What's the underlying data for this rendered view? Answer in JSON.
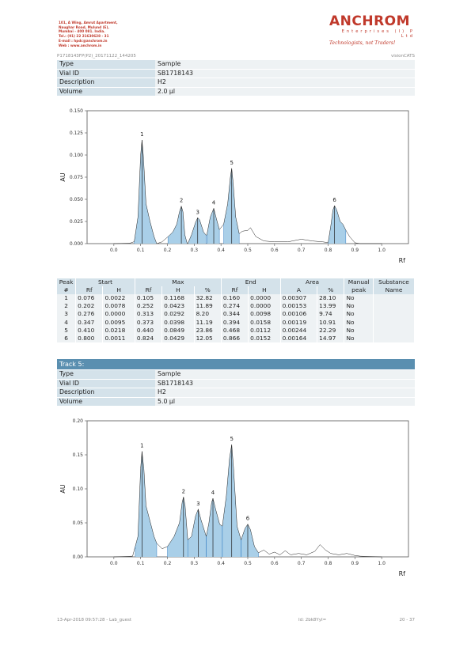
{
  "company": {
    "address_lines": [
      "101, A Wing, Amrut Apartment,",
      "Naughar Road, Mulund (E),",
      "Mumbai - 400 081. India.",
      "Tel.: (91) 22 21630628 - 31",
      "E-mail : hpdc@anchrom.in",
      "Web : www.anchrom.in"
    ],
    "logo_word": "ANCHROM",
    "logo_sub": "Enterprises (I) P Ltd",
    "tagline": "Technologists, not Traders!"
  },
  "header": {
    "file_id": "P1718143FP(P2)_20171122_144205",
    "software": "visionCATS"
  },
  "track4_info": [
    {
      "k": "Type",
      "v": "Sample"
    },
    {
      "k": "Vial ID",
      "v": "SB1718143"
    },
    {
      "k": "Description",
      "v": "H2"
    },
    {
      "k": "Volume",
      "v": "2.0 µl"
    }
  ],
  "track5": {
    "title": "Track 5:",
    "info": [
      {
        "k": "Type",
        "v": "Sample"
      },
      {
        "k": "Vial ID",
        "v": "SB1718143"
      },
      {
        "k": "Description",
        "v": "H2"
      },
      {
        "k": "Volume",
        "v": "5.0 µl"
      }
    ]
  },
  "peak_table": {
    "group_headers": [
      "Peak",
      "Start",
      "Max",
      "End",
      "Area",
      "Manual",
      "Substance"
    ],
    "sub_headers": [
      "#",
      "Rf",
      "H",
      "Rf",
      "H",
      "%",
      "Rf",
      "H",
      "A",
      "%",
      "peak",
      "Name"
    ],
    "rows": [
      [
        "1",
        "0.076",
        "0.0022",
        "0.105",
        "0.1168",
        "32.82",
        "0.160",
        "0.0000",
        "0.00307",
        "28.10",
        "No",
        ""
      ],
      [
        "2",
        "0.202",
        "0.0078",
        "0.252",
        "0.0423",
        "11.89",
        "0.274",
        "0.0000",
        "0.00153",
        "13.99",
        "No",
        ""
      ],
      [
        "3",
        "0.276",
        "0.0000",
        "0.313",
        "0.0292",
        "8.20",
        "0.344",
        "0.0098",
        "0.00106",
        "9.74",
        "No",
        ""
      ],
      [
        "4",
        "0.347",
        "0.0095",
        "0.373",
        "0.0398",
        "11.19",
        "0.394",
        "0.0158",
        "0.00119",
        "10.91",
        "No",
        ""
      ],
      [
        "5",
        "0.410",
        "0.0218",
        "0.440",
        "0.0849",
        "23.86",
        "0.468",
        "0.0112",
        "0.00244",
        "22.29",
        "No",
        ""
      ],
      [
        "6",
        "0.800",
        "0.0011",
        "0.824",
        "0.0429",
        "12.05",
        "0.866",
        "0.0152",
        "0.00164",
        "14.97",
        "No",
        ""
      ]
    ]
  },
  "chart_data": [
    {
      "type": "area",
      "xlabel": "Rf",
      "ylabel": "AU",
      "xlim": [
        -0.1,
        1.1
      ],
      "ylim": [
        0,
        0.15
      ],
      "xticks": [
        "0.0",
        "0.1",
        "0.2",
        "0.3",
        "0.4",
        "0.5",
        "0.6",
        "0.7",
        "0.8",
        "0.9",
        "1.0"
      ],
      "yticks": [
        "0.000",
        "0.025",
        "0.050",
        "0.075",
        "0.100",
        "0.125",
        "0.150"
      ],
      "peaks": [
        {
          "label": "1",
          "rf": 0.105,
          "h": 0.1168,
          "start": 0.076,
          "end": 0.16
        },
        {
          "label": "2",
          "rf": 0.252,
          "h": 0.0423,
          "start": 0.202,
          "end": 0.274
        },
        {
          "label": "3",
          "rf": 0.313,
          "h": 0.0292,
          "start": 0.276,
          "end": 0.344
        },
        {
          "label": "4",
          "rf": 0.373,
          "h": 0.0398,
          "start": 0.347,
          "end": 0.394
        },
        {
          "label": "5",
          "rf": 0.44,
          "h": 0.0849,
          "start": 0.41,
          "end": 0.468
        },
        {
          "label": "6",
          "rf": 0.824,
          "h": 0.0429,
          "start": 0.8,
          "end": 0.866
        }
      ],
      "trace": [
        [
          0.0,
          0.0
        ],
        [
          0.06,
          0.0005
        ],
        [
          0.076,
          0.0022
        ],
        [
          0.09,
          0.03
        ],
        [
          0.1,
          0.1
        ],
        [
          0.105,
          0.1168
        ],
        [
          0.11,
          0.1
        ],
        [
          0.12,
          0.045
        ],
        [
          0.135,
          0.025
        ],
        [
          0.15,
          0.008
        ],
        [
          0.16,
          0.0
        ],
        [
          0.18,
          0.002
        ],
        [
          0.202,
          0.0078
        ],
        [
          0.22,
          0.013
        ],
        [
          0.235,
          0.022
        ],
        [
          0.245,
          0.036
        ],
        [
          0.252,
          0.0423
        ],
        [
          0.258,
          0.036
        ],
        [
          0.265,
          0.01
        ],
        [
          0.274,
          0.0
        ],
        [
          0.276,
          0.0
        ],
        [
          0.29,
          0.01
        ],
        [
          0.305,
          0.024
        ],
        [
          0.313,
          0.0292
        ],
        [
          0.32,
          0.027
        ],
        [
          0.335,
          0.013
        ],
        [
          0.344,
          0.0098
        ],
        [
          0.347,
          0.0095
        ],
        [
          0.36,
          0.03
        ],
        [
          0.373,
          0.0398
        ],
        [
          0.383,
          0.028
        ],
        [
          0.394,
          0.0158
        ],
        [
          0.41,
          0.0218
        ],
        [
          0.425,
          0.045
        ],
        [
          0.435,
          0.075
        ],
        [
          0.44,
          0.0849
        ],
        [
          0.445,
          0.07
        ],
        [
          0.455,
          0.03
        ],
        [
          0.468,
          0.0112
        ],
        [
          0.48,
          0.014
        ],
        [
          0.5,
          0.015
        ],
        [
          0.51,
          0.018
        ],
        [
          0.53,
          0.008
        ],
        [
          0.56,
          0.003
        ],
        [
          0.6,
          0.002
        ],
        [
          0.65,
          0.002
        ],
        [
          0.7,
          0.005
        ],
        [
          0.74,
          0.003
        ],
        [
          0.78,
          0.002
        ],
        [
          0.8,
          0.0011
        ],
        [
          0.81,
          0.02
        ],
        [
          0.818,
          0.038
        ],
        [
          0.824,
          0.0429
        ],
        [
          0.832,
          0.038
        ],
        [
          0.845,
          0.025
        ],
        [
          0.855,
          0.022
        ],
        [
          0.866,
          0.0152
        ],
        [
          0.88,
          0.008
        ],
        [
          0.9,
          0.001
        ],
        [
          0.92,
          0.0
        ],
        [
          1.0,
          0.0
        ]
      ]
    },
    {
      "type": "area",
      "xlabel": "Rf",
      "ylabel": "AU",
      "xlim": [
        -0.1,
        1.1
      ],
      "ylim": [
        0,
        0.2
      ],
      "xticks": [
        "0.0",
        "0.1",
        "0.2",
        "0.3",
        "0.4",
        "0.5",
        "0.6",
        "0.7",
        "0.8",
        "0.9",
        "1.0"
      ],
      "yticks": [
        "0.00",
        "0.05",
        "0.10",
        "0.15",
        "0.20"
      ],
      "peaks": [
        {
          "label": "1",
          "rf": 0.105,
          "h": 0.155,
          "start": 0.08,
          "end": 0.16
        },
        {
          "label": "2",
          "rf": 0.26,
          "h": 0.088,
          "start": 0.2,
          "end": 0.276
        },
        {
          "label": "3",
          "rf": 0.315,
          "h": 0.07,
          "start": 0.276,
          "end": 0.345
        },
        {
          "label": "4",
          "rf": 0.37,
          "h": 0.086,
          "start": 0.345,
          "end": 0.405
        },
        {
          "label": "5",
          "rf": 0.44,
          "h": 0.165,
          "start": 0.405,
          "end": 0.475
        },
        {
          "label": "6",
          "rf": 0.5,
          "h": 0.048,
          "start": 0.475,
          "end": 0.54
        }
      ],
      "trace": [
        [
          0.0,
          0.0
        ],
        [
          0.07,
          0.001
        ],
        [
          0.09,
          0.03
        ],
        [
          0.1,
          0.13
        ],
        [
          0.105,
          0.155
        ],
        [
          0.112,
          0.13
        ],
        [
          0.12,
          0.075
        ],
        [
          0.13,
          0.06
        ],
        [
          0.15,
          0.03
        ],
        [
          0.16,
          0.02
        ],
        [
          0.18,
          0.012
        ],
        [
          0.2,
          0.015
        ],
        [
          0.225,
          0.03
        ],
        [
          0.245,
          0.05
        ],
        [
          0.255,
          0.08
        ],
        [
          0.26,
          0.088
        ],
        [
          0.266,
          0.075
        ],
        [
          0.276,
          0.025
        ],
        [
          0.29,
          0.03
        ],
        [
          0.305,
          0.06
        ],
        [
          0.315,
          0.07
        ],
        [
          0.325,
          0.055
        ],
        [
          0.345,
          0.03
        ],
        [
          0.355,
          0.05
        ],
        [
          0.365,
          0.08
        ],
        [
          0.37,
          0.086
        ],
        [
          0.38,
          0.07
        ],
        [
          0.395,
          0.048
        ],
        [
          0.405,
          0.045
        ],
        [
          0.42,
          0.09
        ],
        [
          0.432,
          0.145
        ],
        [
          0.44,
          0.165
        ],
        [
          0.447,
          0.13
        ],
        [
          0.46,
          0.045
        ],
        [
          0.475,
          0.025
        ],
        [
          0.49,
          0.042
        ],
        [
          0.5,
          0.048
        ],
        [
          0.51,
          0.04
        ],
        [
          0.525,
          0.015
        ],
        [
          0.54,
          0.006
        ],
        [
          0.56,
          0.01
        ],
        [
          0.58,
          0.004
        ],
        [
          0.6,
          0.007
        ],
        [
          0.62,
          0.003
        ],
        [
          0.64,
          0.009
        ],
        [
          0.66,
          0.003
        ],
        [
          0.69,
          0.005
        ],
        [
          0.72,
          0.003
        ],
        [
          0.75,
          0.008
        ],
        [
          0.77,
          0.018
        ],
        [
          0.79,
          0.01
        ],
        [
          0.81,
          0.005
        ],
        [
          0.84,
          0.003
        ],
        [
          0.87,
          0.005
        ],
        [
          0.9,
          0.002
        ],
        [
          0.92,
          0.001
        ],
        [
          1.0,
          0.0
        ]
      ]
    }
  ],
  "footer": {
    "date": "13-Apr-2018 09:57:28 - Lab_guest",
    "id": "Id: 2bk8YyI=",
    "page": "20 - 37"
  },
  "colors": {
    "fill": "#a9cfe8",
    "stroke": "#3a82c4",
    "accent": "#c0392b",
    "table_header": "#d4e2ea",
    "table_row": "#eef2f4",
    "track_bar": "#5a8fb0"
  }
}
